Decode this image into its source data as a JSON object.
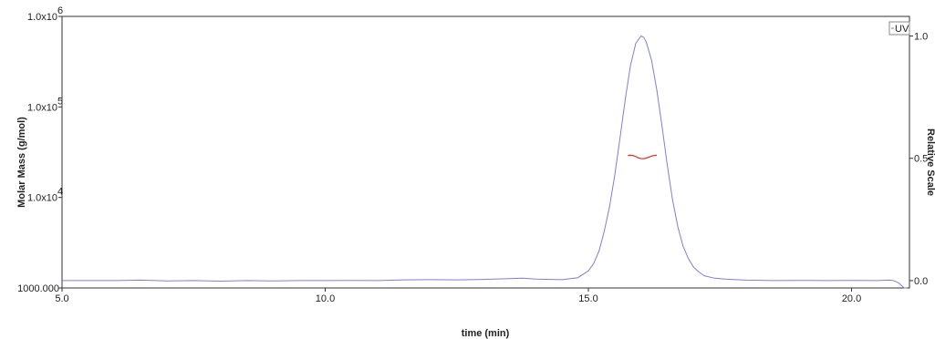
{
  "chart_data": {
    "type": "line",
    "xlabel": "time (min)",
    "ylabel": "Molar Mass (g/mol)",
    "y2label": "Relative Scale",
    "xlim": [
      5.0,
      21.1
    ],
    "ylim": [
      1000,
      1000000
    ],
    "yscale": "log",
    "y2lim": [
      -0.03,
      1.08
    ],
    "grid": false,
    "legend": {
      "position": "top-right",
      "entries": [
        "UV"
      ]
    },
    "x_ticks": [
      {
        "value": 5.0,
        "label": "5.0"
      },
      {
        "value": 10.0,
        "label": "10.0"
      },
      {
        "value": 15.0,
        "label": "15.0"
      },
      {
        "value": 20.0,
        "label": "20.0"
      }
    ],
    "y_ticks": [
      {
        "value": 1000,
        "label": "1000.000"
      },
      {
        "value": 10000,
        "label": "1.0x10",
        "exp": "4"
      },
      {
        "value": 100000,
        "label": "1.0x10",
        "exp": "5"
      },
      {
        "value": 1000000,
        "label": "1.0x10",
        "exp": "6"
      }
    ],
    "y2_ticks": [
      {
        "value": 0.0,
        "label": "0.0"
      },
      {
        "value": 0.5,
        "label": "0.5"
      },
      {
        "value": 1.0,
        "label": "1.0"
      }
    ],
    "series": [
      {
        "name": "UV",
        "axis": "right",
        "color": "#7d7de0",
        "x": [
          5.0,
          5.5,
          6.0,
          6.5,
          7.0,
          7.5,
          8.0,
          8.5,
          9.0,
          9.5,
          10.0,
          10.5,
          11.0,
          11.5,
          12.0,
          12.5,
          13.0,
          13.5,
          13.75,
          14.0,
          14.5,
          14.8,
          15.0,
          15.1,
          15.2,
          15.3,
          15.4,
          15.5,
          15.6,
          15.7,
          15.8,
          15.9,
          16.0,
          16.05,
          16.1,
          16.2,
          16.3,
          16.4,
          16.5,
          16.6,
          16.7,
          16.8,
          16.9,
          17.0,
          17.1,
          17.2,
          17.4,
          17.6,
          17.8,
          18.0,
          18.5,
          19.0,
          19.5,
          20.0,
          20.5,
          20.7,
          20.8,
          20.9,
          21.0,
          21.05
        ],
        "y": [
          0.0,
          0.0,
          0.0,
          0.002,
          -0.001,
          0.0,
          -0.002,
          0.0,
          -0.001,
          0.0,
          0.0,
          0.001,
          0.0,
          0.003,
          0.004,
          0.003,
          0.005,
          0.008,
          0.01,
          0.006,
          0.004,
          0.012,
          0.04,
          0.07,
          0.12,
          0.2,
          0.3,
          0.43,
          0.58,
          0.74,
          0.88,
          0.97,
          1.0,
          0.995,
          0.975,
          0.9,
          0.78,
          0.63,
          0.47,
          0.33,
          0.22,
          0.14,
          0.09,
          0.055,
          0.035,
          0.02,
          0.01,
          0.006,
          0.004,
          0.002,
          0.0,
          0.001,
          0.0,
          0.001,
          0.0,
          0.002,
          0.0,
          -0.01,
          -0.03,
          -0.03
        ]
      },
      {
        "name": "",
        "axis": "left",
        "color": "#e03a2a",
        "x": [
          15.75,
          15.8,
          15.85,
          15.9,
          15.95,
          16.0,
          16.05,
          16.1,
          16.15,
          16.2,
          16.25,
          16.3
        ],
        "y": [
          29000,
          29300,
          29000,
          28300,
          27400,
          26900,
          26800,
          27200,
          27900,
          28600,
          29100,
          29300
        ]
      }
    ]
  }
}
